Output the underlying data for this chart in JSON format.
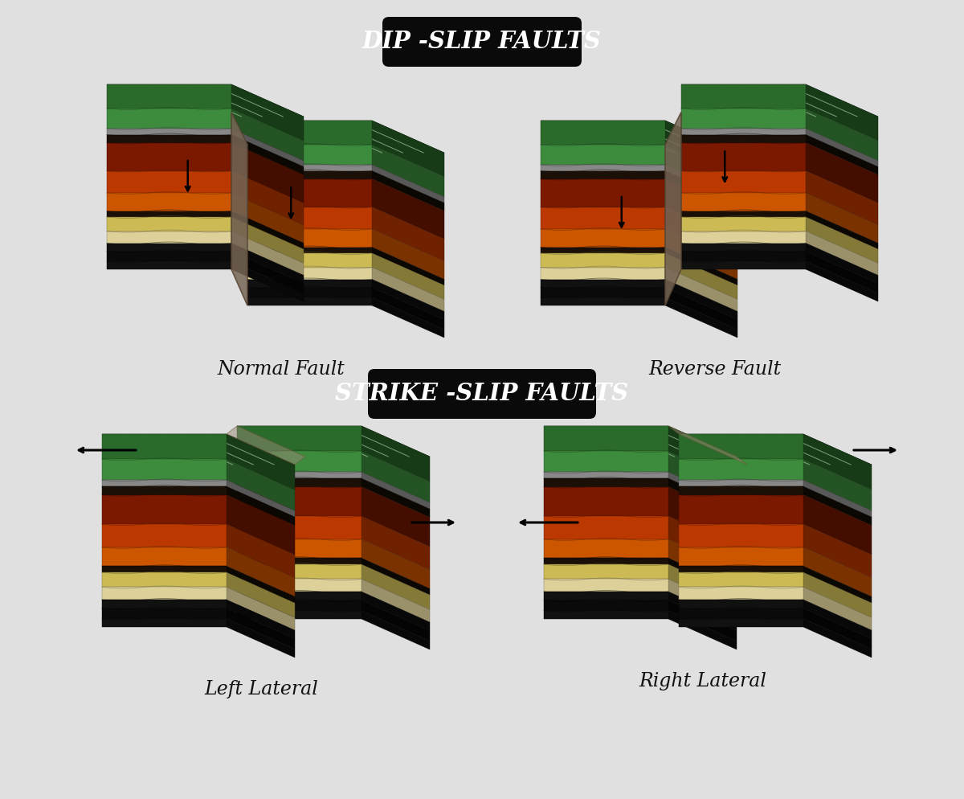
{
  "bg_color": "#e0e0e0",
  "title1": "DIP -SLIP FAULTS",
  "title2": "STRIKE -SLIP FAULTS",
  "title_bg": "#0a0a0a",
  "title_fg": "#ffffff",
  "label1": "Normal Fault",
  "label2": "Reverse Fault",
  "label3": "Left Lateral",
  "label4": "Right Lateral",
  "label_fontsize": 17,
  "title_fontsize": 21,
  "green_top": "#2d7a2d",
  "green_top2": "#4a9a4a",
  "gray_line": "#999999",
  "dark1": "#111111",
  "dark2": "#1e1408",
  "red_dark": "#7a1500",
  "red_mid": "#bb3300",
  "orange": "#cc5500",
  "yellow": "#ccbb55",
  "cream": "#ddd099",
  "dark3": "#0a0a0a"
}
